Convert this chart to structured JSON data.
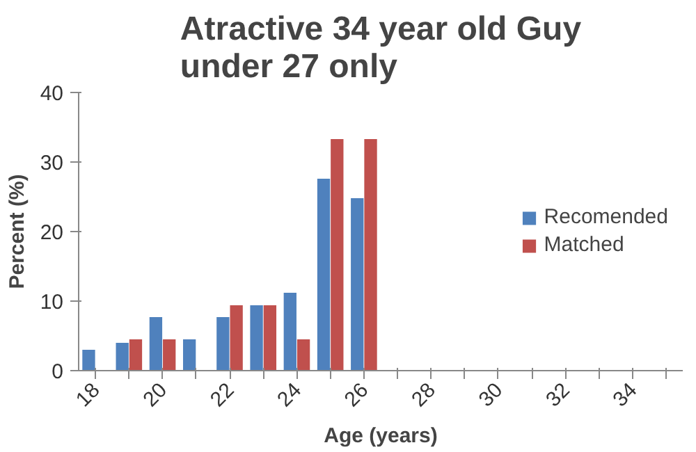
{
  "chart_data": {
    "type": "bar",
    "title": "Atractive 34 year old Guy\nunder 27 only",
    "xlabel": "Age (years)",
    "ylabel": "Percent (%)",
    "categories": [
      "18",
      null,
      "20",
      null,
      "22",
      null,
      "24",
      null,
      "26",
      null,
      "28",
      null,
      "30",
      null,
      "32",
      null,
      "34",
      null
    ],
    "series": [
      {
        "name": "Recomended",
        "color": "#4f81bd",
        "values": [
          3,
          4,
          7.7,
          4.5,
          7.7,
          9.4,
          11.2,
          27.6,
          24.8,
          0,
          0,
          0,
          0,
          0,
          0,
          0,
          0,
          0
        ]
      },
      {
        "name": "Matched",
        "color": "#c0504d",
        "values": [
          0,
          4.5,
          4.5,
          0,
          9.4,
          9.4,
          4.5,
          33.3,
          33.3,
          0,
          0,
          0,
          0,
          0,
          0,
          0,
          0,
          0
        ]
      }
    ],
    "ylim": [
      0,
      40
    ],
    "yticks": [
      0,
      10,
      20,
      30,
      40
    ],
    "grid": false,
    "legend": "right"
  }
}
